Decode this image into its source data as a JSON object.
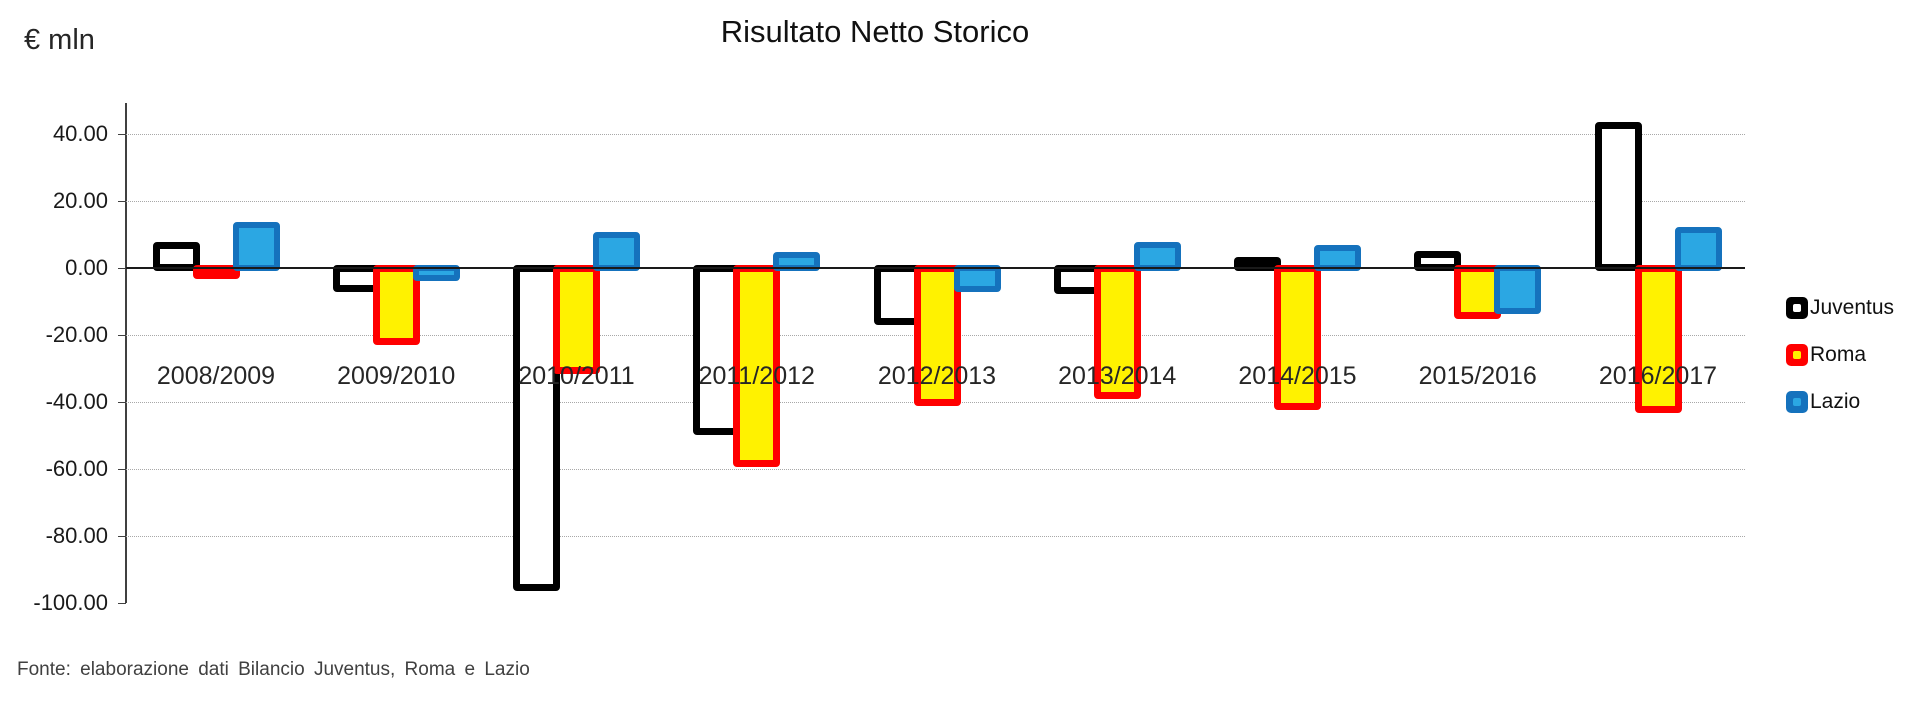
{
  "chart_data": {
    "type": "bar",
    "title": "Risultato Netto Storico",
    "unit_label": "€ mln",
    "source": "Fonte: elaborazione dati Bilancio Juventus, Roma e Lazio",
    "categories": [
      "2008/2009",
      "2009/2010",
      "2010/2011",
      "2011/2012",
      "2012/2013",
      "2013/2014",
      "2014/2015",
      "2015/2016",
      "2016/2017"
    ],
    "series": [
      {
        "name": "Juventus",
        "border_color": "#000000",
        "fill_color": "#FFFFFF",
        "values": [
          6.6,
          -6.0,
          -95.4,
          -48.7,
          -15.9,
          -6.7,
          2.3,
          4.1,
          42.6
        ]
      },
      {
        "name": "Roma",
        "border_color": "#FF0000",
        "fill_color": "#FFF200",
        "values": [
          -1.9,
          -21.9,
          -30.6,
          -58.3,
          -40.1,
          -38.1,
          -41.2,
          -14.1,
          -42.1
        ]
      },
      {
        "name": "Lazio",
        "border_color": "#1572BD",
        "fill_color": "#2BA7E3",
        "values": [
          12.9,
          -2.9,
          9.8,
          3.8,
          -6.4,
          7.0,
          6.0,
          -12.8,
          11.3
        ]
      }
    ],
    "y_ticks": [
      {
        "value": 40,
        "label": "40.00"
      },
      {
        "value": 20,
        "label": "20.00"
      },
      {
        "value": 0,
        "label": "0.00"
      },
      {
        "value": -20,
        "label": "-20.00"
      },
      {
        "value": -40,
        "label": "-40.00"
      },
      {
        "value": -60,
        "label": "-60.00"
      },
      {
        "value": -80,
        "label": "-80.00"
      },
      {
        "value": -100,
        "label": "-100.00"
      }
    ],
    "ylim": [
      -100,
      49
    ],
    "grid": "horizontal-dotted",
    "legend_position": "right"
  }
}
